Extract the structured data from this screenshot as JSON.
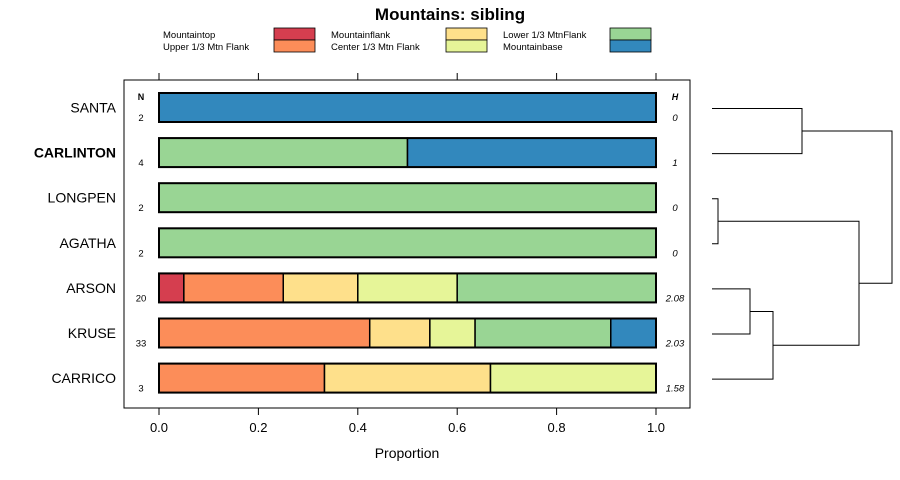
{
  "chart_data": {
    "type": "bar",
    "subtype": "stacked-horizontal-proportion",
    "title": "Mountains: sibling",
    "xlabel": "Proportion",
    "ylabel": "",
    "xlim": [
      0,
      1
    ],
    "x_ticks": [
      "0.0",
      "0.2",
      "0.4",
      "0.6",
      "0.8",
      "1.0"
    ],
    "n_header": "N",
    "h_header": "H",
    "legend": [
      {
        "name": "Mountaintop",
        "color": "#d53e4f"
      },
      {
        "name": "Upper 1/3 Mtn Flank",
        "color": "#fc8d59"
      },
      {
        "name": "Mountainflank",
        "color": "#fee08b"
      },
      {
        "name": "Center 1/3 Mtn Flank",
        "color": "#e6f598"
      },
      {
        "name": "Lower 1/3 MtnFlank",
        "color": "#99d594"
      },
      {
        "name": "Mountainbase",
        "color": "#3288bd"
      }
    ],
    "categories": [
      "SANTA",
      "CARLINTON",
      "LONGPEN",
      "AGATHA",
      "ARSON",
      "KRUSE",
      "CARRICO"
    ],
    "bold_category": "CARLINTON",
    "n_values": [
      "2",
      "4",
      "2",
      "2",
      "20",
      "33",
      "3"
    ],
    "h_values": [
      "0",
      "1",
      "0",
      "0",
      "2.08",
      "2.03",
      "1.58"
    ],
    "series": [
      {
        "name": "Mountaintop",
        "values": [
          0,
          0,
          0,
          0,
          0.05,
          0,
          0
        ]
      },
      {
        "name": "Upper 1/3 Mtn Flank",
        "values": [
          0,
          0,
          0,
          0,
          0.2,
          0.424,
          0.333
        ]
      },
      {
        "name": "Mountainflank",
        "values": [
          0,
          0,
          0,
          0,
          0.15,
          0.121,
          0.334
        ]
      },
      {
        "name": "Center 1/3 Mtn Flank",
        "values": [
          0,
          0,
          0,
          0,
          0.2,
          0.091,
          0.333
        ]
      },
      {
        "name": "Lower 1/3 MtnFlank",
        "values": [
          0,
          0.5,
          1,
          1,
          0.4,
          0.273,
          0
        ]
      },
      {
        "name": "Mountainbase",
        "values": [
          1,
          0.5,
          0,
          0,
          0,
          0.091,
          0
        ]
      }
    ],
    "dendrogram": {
      "merges": [
        {
          "left": "LONGPEN",
          "right": "AGATHA",
          "height": 0
        },
        {
          "left": "SANTA",
          "right": "CARLINTON",
          "height": 0.5
        },
        {
          "left": "KRUSE",
          "right": "ARSON",
          "height": 0.2
        },
        {
          "left": "KRUSE+ARSON",
          "right": "CARRICO",
          "height": 0.3
        },
        {
          "left": "LONGPEN+AGATHA",
          "right": "KRUSE+ARSON+CARRICO",
          "height": 0.8
        },
        {
          "left": "SANTA+CARLINTON",
          "right": "ALL",
          "height": 1.0
        }
      ]
    }
  }
}
